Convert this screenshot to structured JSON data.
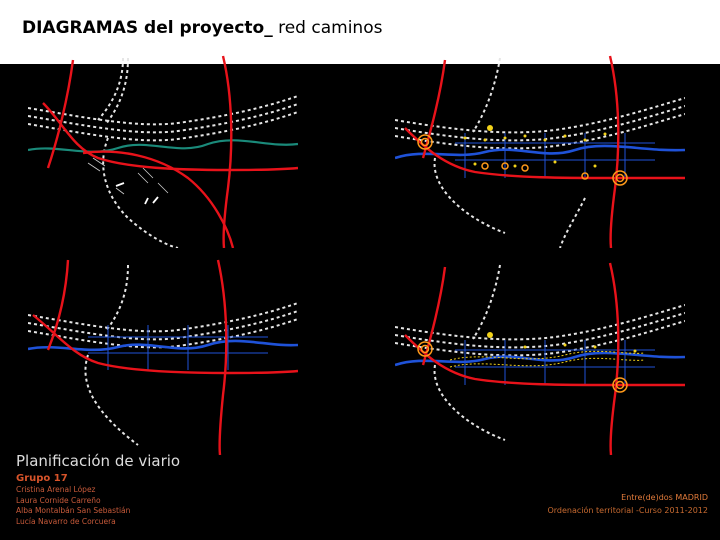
{
  "header": {
    "title_bold": "DIAGRAMAS del proyecto_",
    "title_rest": " red caminos"
  },
  "caption": "Planificación de viario",
  "group": {
    "label": "Grupo 17",
    "members": [
      "Cristina Arenal López",
      "Laura Cornide Carreño",
      "Alba Montalbán San Sebastián",
      "Lucía Navarro de Corcuera"
    ]
  },
  "credits": {
    "line1": "Entre(de)dos  MADRID",
    "line2": "Ordenación territorial -Curso 2011-2012"
  },
  "colors": {
    "road": "#e8121a",
    "river_teal": "#1a8a7a",
    "river_blue": "#1f52d8",
    "path_white": "#e6e6e6",
    "node": "#ff9a1a",
    "point": "#f2d21a"
  }
}
